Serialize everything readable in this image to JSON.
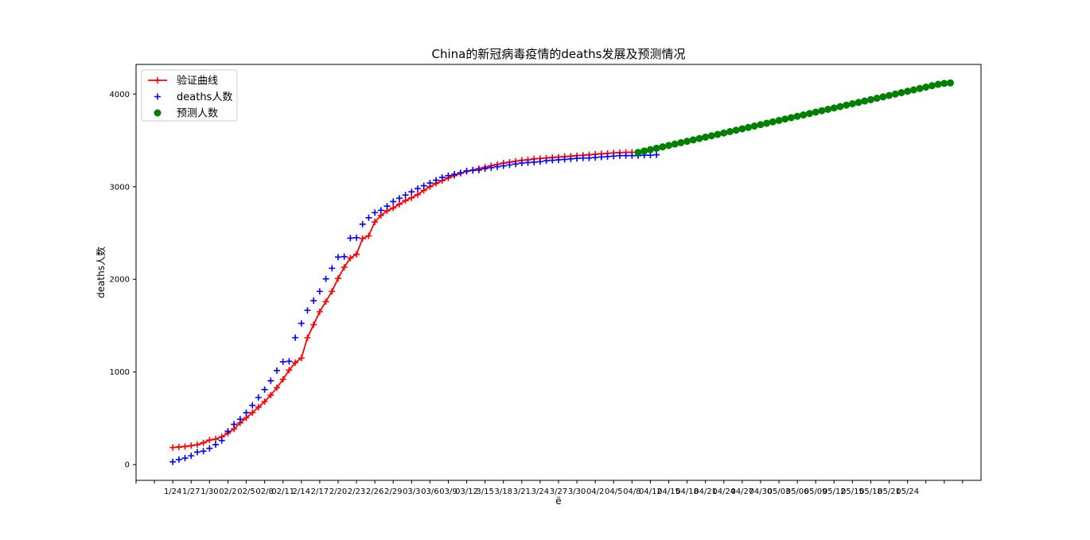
{
  "chart_data": {
    "type": "line",
    "title": "China的新冠病毒疫情的deaths发展及预测情况",
    "xlabel": "ë",
    "ylabel": "deaths人数",
    "ylim": [
      -170,
      4320
    ],
    "xlim": [
      -6,
      132
    ],
    "grid": false,
    "legend_position": "top-left",
    "yticks": [
      0,
      1000,
      2000,
      3000,
      4000
    ],
    "xtick_labels": [
      "1/24",
      "1/27",
      "1/30",
      "02/2",
      "02/5",
      "02/8",
      "02/11",
      "2/14",
      "2/17",
      "2/20",
      "2/23",
      "2/26",
      "2/29",
      "03/3",
      "03/6",
      "03/9",
      "03/12",
      "3/15",
      "3/18",
      "3/21",
      "3/24",
      "3/27",
      "3/30",
      "04/2",
      "04/5",
      "04/8",
      "04/12",
      "04/15",
      "04/18",
      "04/21",
      "04/24",
      "04/27",
      "04/30",
      "05/03",
      "05/06",
      "05/09",
      "05/12",
      "05/15",
      "05/18",
      "05/21",
      "05/24"
    ],
    "series": [
      {
        "name": "验证曲线",
        "color": "#ff0000",
        "marker": "+",
        "x_start": 0,
        "values": [
          185,
          190,
          195,
          205,
          215,
          235,
          265,
          275,
          300,
          340,
          385,
          450,
          505,
          560,
          620,
          680,
          750,
          830,
          920,
          1020,
          1100,
          1150,
          1370,
          1510,
          1650,
          1760,
          1870,
          2010,
          2130,
          2230,
          2270,
          2440,
          2470,
          2620,
          2690,
          2740,
          2770,
          2810,
          2850,
          2880,
          2915,
          2960,
          3000,
          3035,
          3065,
          3095,
          3120,
          3145,
          3165,
          3180,
          3195,
          3210,
          3225,
          3240,
          3255,
          3265,
          3275,
          3285,
          3290,
          3300,
          3305,
          3310,
          3315,
          3320,
          3325,
          3330,
          3335,
          3340,
          3345,
          3350,
          3355,
          3360,
          3365,
          3368,
          3370,
          3372
        ]
      },
      {
        "name": "deaths人数",
        "color": "#0000ff",
        "marker": "+",
        "x_start": 0,
        "values": [
          30,
          55,
          70,
          95,
          135,
          145,
          175,
          215,
          260,
          360,
          435,
          490,
          560,
          640,
          725,
          810,
          905,
          1015,
          1110,
          1115,
          1370,
          1525,
          1665,
          1770,
          1870,
          2005,
          2120,
          2240,
          2245,
          2445,
          2450,
          2595,
          2665,
          2720,
          2745,
          2790,
          2840,
          2875,
          2910,
          2945,
          2980,
          3010,
          3040,
          3070,
          3100,
          3120,
          3135,
          3150,
          3170,
          3175,
          3180,
          3195,
          3205,
          3215,
          3225,
          3235,
          3245,
          3255,
          3260,
          3265,
          3270,
          3280,
          3285,
          3290,
          3295,
          3300,
          3305,
          3310,
          3310,
          3315,
          3320,
          3325,
          3330,
          3335,
          3335,
          3335,
          3335,
          3340,
          3340,
          3345
        ]
      },
      {
        "name": "预测人数",
        "color": "#008000",
        "marker": "o",
        "x_start": 76,
        "values": [
          3370,
          3385,
          3400,
          3415,
          3430,
          3445,
          3460,
          3475,
          3490,
          3505,
          3520,
          3535,
          3550,
          3565,
          3580,
          3595,
          3610,
          3625,
          3640,
          3655,
          3670,
          3685,
          3700,
          3715,
          3730,
          3745,
          3760,
          3775,
          3790,
          3805,
          3820,
          3835,
          3850,
          3865,
          3880,
          3895,
          3910,
          3925,
          3940,
          3955,
          3970,
          3985,
          4000,
          4015,
          4030,
          4045,
          4060,
          4075,
          4090,
          4105,
          4115,
          4120
        ]
      }
    ]
  }
}
